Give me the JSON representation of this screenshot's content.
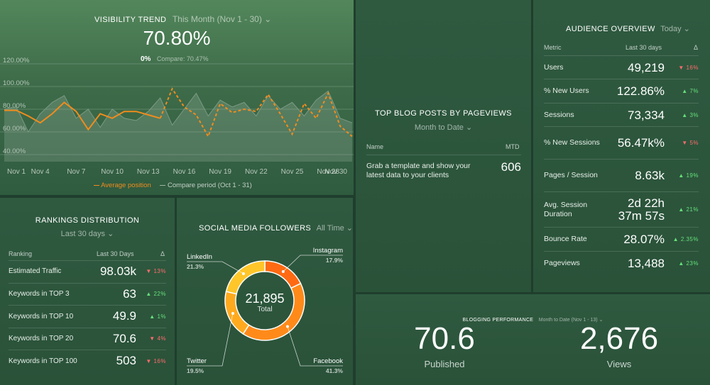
{
  "trend": {
    "title": "VISIBILITY TREND",
    "period": "This Month (Nov 1 - 30)",
    "value": "70.80%",
    "change": "0%",
    "compare": "Compare: 70.47%",
    "legend_current": "Average position",
    "legend_compare": "Compare period (Oct 1 - 31)"
  },
  "chart_data": {
    "type": "line",
    "x": [
      "Nov 1",
      "Nov 2",
      "Nov 3",
      "Nov 4",
      "Nov 5",
      "Nov 6",
      "Nov 7",
      "Nov 8",
      "Nov 9",
      "Nov 10",
      "Nov 11",
      "Nov 12",
      "Nov 13",
      "Nov 14",
      "Nov 15",
      "Nov 16",
      "Nov 17",
      "Nov 18",
      "Nov 19",
      "Nov 20",
      "Nov 21",
      "Nov 22",
      "Nov 23",
      "Nov 24",
      "Nov 25",
      "Nov 26",
      "Nov 27",
      "Nov 28",
      "Nov 29",
      "Nov 30"
    ],
    "x_ticks": [
      "Nov 1",
      "Nov 4",
      "Nov 7",
      "Nov 10",
      "Nov 13",
      "Nov 16",
      "Nov 19",
      "Nov 22",
      "Nov 25",
      "Nov 28",
      "Nov 30"
    ],
    "y_ticks": [
      "120.00%",
      "100.00%",
      "80.00%",
      "60.00%",
      "40.00%"
    ],
    "ylim": [
      40,
      120
    ],
    "series": [
      {
        "name": "Average position",
        "color": "#f08c1e",
        "solid_until_index": 13,
        "values": [
          79,
          79,
          74,
          68,
          76,
          86,
          78,
          62,
          76,
          72,
          78,
          78,
          75,
          72,
          98,
          82,
          75,
          56,
          85,
          77,
          80,
          78,
          93,
          76,
          58,
          85,
          72,
          94,
          65,
          56
        ]
      },
      {
        "name": "Compare period (Oct 1 - 31)",
        "color": "#7d9a84",
        "values": [
          80,
          82,
          60,
          76,
          86,
          92,
          72,
          80,
          64,
          80,
          72,
          70,
          78,
          90,
          66,
          80,
          94,
          74,
          88,
          82,
          86,
          74,
          92,
          80,
          86,
          74,
          88,
          96,
          72,
          68
        ]
      }
    ]
  },
  "rankings": {
    "title": "RANKINGS DISTRIBUTION",
    "period": "Last 30 days",
    "col_ranking": "Ranking",
    "col_period": "Last 30 Days",
    "col_delta": "Δ",
    "rows": [
      {
        "name": "Estimated Traffic",
        "value": "98.03k",
        "delta": "13%",
        "dir": "down"
      },
      {
        "name": "Keywords in TOP 3",
        "value": "63",
        "delta": "22%",
        "dir": "up"
      },
      {
        "name": "Keywords in TOP 10",
        "value": "49.9",
        "delta": "1%",
        "dir": "up"
      },
      {
        "name": "Keywords in TOP 20",
        "value": "70.6",
        "delta": "4%",
        "dir": "down"
      },
      {
        "name": "Keywords in TOP 100",
        "value": "503",
        "delta": "16%",
        "dir": "down"
      }
    ]
  },
  "social": {
    "title": "SOCIAL MEDIA FOLLOWERS",
    "period": "All Time",
    "total": "21,895",
    "total_label": "Total",
    "segments": [
      {
        "name": "Instagram",
        "pct": "17.9%",
        "value": 17.9,
        "color": "#ff6a12"
      },
      {
        "name": "Facebook",
        "pct": "41.3%",
        "value": 41.3,
        "color": "#ff8a1a"
      },
      {
        "name": "Twitter",
        "pct": "19.5%",
        "value": 19.5,
        "color": "#ffaa1e"
      },
      {
        "name": "LinkedIn",
        "pct": "21.3%",
        "value": 21.3,
        "color": "#ffc62a"
      }
    ]
  },
  "blog": {
    "title": "TOP BLOG POSTS BY PAGEVIEWS",
    "period": "Month to Date",
    "col_name": "Name",
    "col_mtd": "MTD",
    "row_text": "Grab a template and show your latest data to your clients",
    "row_value": "606"
  },
  "audience": {
    "title": "AUDIENCE OVERVIEW",
    "period": "Today",
    "col_metric": "Metric",
    "col_period": "Last 30 days",
    "col_delta": "Δ",
    "rows": [
      {
        "name": "Users",
        "value": "49,219",
        "delta": "16%",
        "dir": "down"
      },
      {
        "name": "% New Users",
        "value": "122.86%",
        "delta": "7%",
        "dir": "up"
      },
      {
        "name": "Sessions",
        "value": "73,334",
        "delta": "3%",
        "dir": "up"
      },
      {
        "name": "% New Sessions",
        "value": "56.47k%",
        "delta": "5%",
        "dir": "down"
      },
      {
        "name": "Pages / Session",
        "value": "8.63k",
        "delta": "19%",
        "dir": "up"
      },
      {
        "name": "Avg. Session Duration",
        "value": "2d 22h 37m 57s",
        "delta": "21%",
        "dir": "up"
      },
      {
        "name": "Bounce Rate",
        "value": "28.07%",
        "delta": "2.35%",
        "dir": "up"
      },
      {
        "name": "Pageviews",
        "value": "13,488",
        "delta": "23%",
        "dir": "up"
      }
    ]
  },
  "performance": {
    "title": "BLOGGING PERFORMANCE",
    "period": "Month to Date (Nov 1 - 13)",
    "published_value": "70.6",
    "published_label": "Published",
    "views_value": "2,676",
    "views_label": "Views"
  },
  "colors": {
    "accent_orange": "#f08c1e",
    "down": "#ff6b6b",
    "up": "#66e07a"
  }
}
